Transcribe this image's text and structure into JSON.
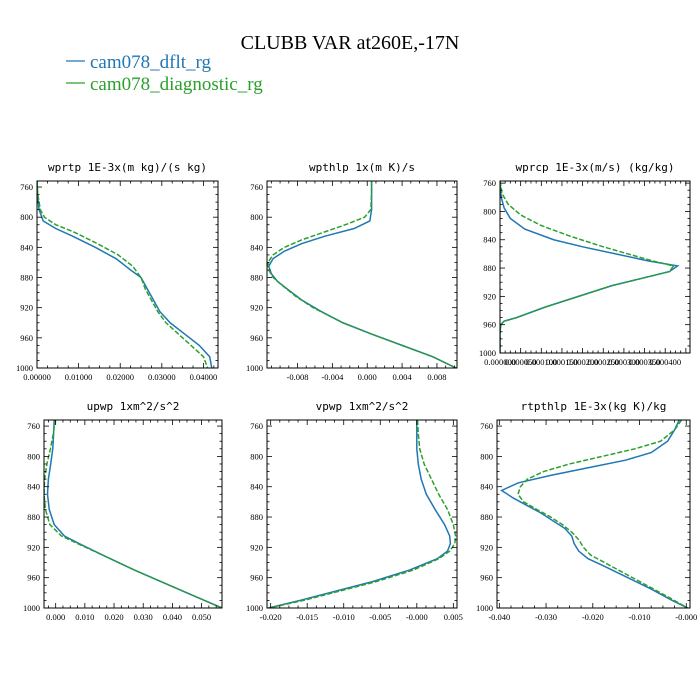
{
  "title": "CLUBB VAR at260E,-17N",
  "legend": [
    {
      "name": "cam078_dflt_rg",
      "color": "#1f77b4",
      "style": "solid"
    },
    {
      "name": "cam078_diagnostic_rg",
      "color": "#2ca02c",
      "style": "dashed"
    }
  ],
  "chart_data": [
    {
      "type": "line",
      "title": "wprtp  1E-3x(m kg)/(s kg)",
      "xlim": [
        0,
        0.0435
      ],
      "ylim": [
        1000,
        752
      ],
      "xticks": [
        0,
        0.01,
        0.02,
        0.03,
        0.04
      ],
      "xtick_labels": [
        "0.00000",
        "0.01000",
        "0.02000",
        "0.03000",
        "0.04000"
      ],
      "yticks": [
        760,
        800,
        840,
        880,
        920,
        960,
        1000
      ],
      "grid": false,
      "legend": "none",
      "series": [
        {
          "name": "cam078_dflt_rg",
          "y": [
            752,
            770,
            790,
            805,
            815,
            825,
            840,
            855,
            870,
            880,
            895,
            910,
            925,
            940,
            955,
            970,
            985,
            1000
          ],
          "values": [
            0.0,
            0.0001,
            0.0005,
            0.0015,
            0.0045,
            0.0085,
            0.014,
            0.019,
            0.0225,
            0.025,
            0.0265,
            0.028,
            0.0295,
            0.032,
            0.0355,
            0.039,
            0.0415,
            0.042
          ]
        },
        {
          "name": "cam078_diagnostic_rg",
          "y": [
            752,
            770,
            790,
            800,
            810,
            820,
            835,
            850,
            865,
            880,
            895,
            910,
            925,
            940,
            955,
            970,
            985,
            1000
          ],
          "values": [
            0.0,
            0.0002,
            0.0008,
            0.0018,
            0.0045,
            0.009,
            0.0145,
            0.0195,
            0.023,
            0.025,
            0.026,
            0.0275,
            0.029,
            0.031,
            0.034,
            0.037,
            0.04,
            0.041
          ]
        }
      ]
    },
    {
      "type": "line",
      "title": "wpthlp  1x(m K)/s",
      "xlim": [
        -0.0115,
        0.0103
      ],
      "ylim": [
        1000,
        752
      ],
      "xticks": [
        -0.008,
        -0.004,
        0,
        0.004,
        0.008
      ],
      "xtick_labels": [
        "-0.008",
        "-0.004",
        "0.000",
        "0.004",
        "0.008"
      ],
      "yticks": [
        760,
        800,
        840,
        880,
        920,
        960,
        1000
      ],
      "grid": false,
      "legend": "none",
      "series": [
        {
          "name": "cam078_dflt_rg",
          "y": [
            752,
            770,
            790,
            805,
            815,
            825,
            835,
            845,
            855,
            865,
            875,
            885,
            895,
            910,
            925,
            940,
            955,
            970,
            985,
            1000
          ],
          "values": [
            0.0005,
            0.0005,
            0.0005,
            0.0003,
            -0.0015,
            -0.0048,
            -0.0075,
            -0.0095,
            -0.0108,
            -0.0113,
            -0.011,
            -0.0103,
            -0.0092,
            -0.0075,
            -0.0053,
            -0.0028,
            0.0005,
            0.004,
            0.0075,
            0.0102
          ]
        },
        {
          "name": "cam078_diagnostic_rg",
          "y": [
            752,
            770,
            790,
            800,
            810,
            820,
            830,
            840,
            850,
            860,
            870,
            880,
            890,
            905,
            920,
            940,
            955,
            970,
            985,
            1000
          ],
          "values": [
            0.0005,
            0.0005,
            0.0004,
            -0.0003,
            -0.0025,
            -0.005,
            -0.0075,
            -0.0095,
            -0.0108,
            -0.0114,
            -0.0113,
            -0.0108,
            -0.0098,
            -0.0082,
            -0.0062,
            -0.0028,
            0.0005,
            0.004,
            0.0075,
            0.0102
          ]
        }
      ]
    },
    {
      "type": "line",
      "title": "wprcp  1E-3x(m/s) (kg/kg)",
      "xlim": [
        0,
        0.00046
      ],
      "ylim": [
        1000,
        757
      ],
      "xticks": [
        0,
        5e-05,
        0.0001,
        0.00015,
        0.0002,
        0.00025,
        0.0003,
        0.00035,
        0.0004
      ],
      "xtick_labels": [
        "0.000000",
        "0.000050",
        "0.000100",
        "0.000150",
        "0.000200",
        "0.000250",
        "0.000300",
        "0.000350",
        "0.000400"
      ],
      "yticks": [
        760,
        800,
        840,
        880,
        920,
        960,
        1000
      ],
      "grid": false,
      "legend": "none",
      "series": [
        {
          "name": "cam078_dflt_rg",
          "y": [
            757,
            780,
            795,
            810,
            825,
            840,
            850,
            860,
            870,
            877,
            885,
            895,
            905,
            920,
            935,
            950,
            955,
            960,
            970,
            985,
            1000
          ],
          "values": [
            0,
            3e-06,
            1e-05,
            2.5e-05,
            6e-05,
            0.00013,
            0.0002,
            0.00028,
            0.00036,
            0.00043,
            0.00041,
            0.00034,
            0.00027,
            0.00019,
            0.00011,
            4e-05,
            1e-05,
            2e-06,
            0,
            0,
            0
          ]
        },
        {
          "name": "cam078_diagnostic_rg",
          "y": [
            757,
            775,
            790,
            805,
            820,
            835,
            850,
            860,
            870,
            877,
            885,
            895,
            905,
            920,
            935,
            950,
            955,
            960,
            970,
            985,
            1000
          ],
          "values": [
            0,
            5e-06,
            2e-05,
            5e-05,
            0.0001,
            0.00017,
            0.00025,
            0.00031,
            0.00037,
            0.00042,
            0.00041,
            0.00034,
            0.00027,
            0.00019,
            0.00011,
            4e-05,
            1e-05,
            2e-06,
            0,
            0,
            0
          ]
        }
      ]
    },
    {
      "type": "line",
      "title": "upwp  1xm^2/s^2",
      "xlim": [
        -0.004,
        0.057
      ],
      "ylim": [
        1000,
        752
      ],
      "xticks": [
        0,
        0.01,
        0.02,
        0.03,
        0.04,
        0.05
      ],
      "xtick_labels": [
        "0.000",
        "0.010",
        "0.020",
        "0.030",
        "0.040",
        "0.050"
      ],
      "yticks": [
        760,
        800,
        840,
        880,
        920,
        960,
        1000
      ],
      "grid": false,
      "legend": "none",
      "series": [
        {
          "name": "cam078_dflt_rg",
          "y": [
            752,
            770,
            790,
            810,
            830,
            850,
            870,
            890,
            905,
            915,
            930,
            950,
            970,
            985,
            1000
          ],
          "values": [
            -0.0005,
            -0.0007,
            -0.001,
            -0.0017,
            -0.0025,
            -0.0028,
            -0.0022,
            -0.0005,
            0.003,
            0.008,
            0.016,
            0.027,
            0.039,
            0.048,
            0.057
          ]
        },
        {
          "name": "cam078_diagnostic_rg",
          "y": [
            752,
            770,
            790,
            810,
            830,
            850,
            870,
            890,
            905,
            915,
            930,
            950,
            970,
            985,
            1000
          ],
          "values": [
            -0.0002,
            -0.0008,
            -0.0018,
            -0.003,
            -0.0038,
            -0.004,
            -0.0035,
            -0.002,
            0.002,
            0.0075,
            0.016,
            0.027,
            0.039,
            0.048,
            0.057
          ]
        }
      ]
    },
    {
      "type": "line",
      "title": "vpwp  1xm^2/s^2",
      "xlim": [
        -0.0205,
        0.0055
      ],
      "ylim": [
        1000,
        752
      ],
      "xticks": [
        -0.02,
        -0.015,
        -0.01,
        -0.005,
        0,
        0.005
      ],
      "xtick_labels": [
        "-0.020",
        "-0.015",
        "-0.010",
        "-0.005",
        "-0.000",
        "0.005"
      ],
      "yticks": [
        760,
        800,
        840,
        880,
        920,
        960,
        1000
      ],
      "grid": false,
      "legend": "none",
      "series": [
        {
          "name": "cam078_dflt_rg",
          "y": [
            752,
            770,
            790,
            810,
            830,
            850,
            870,
            890,
            905,
            915,
            925,
            935,
            950,
            965,
            980,
            990,
            1000
          ],
          "values": [
            0.0,
            0.0,
            0.0,
            0.0002,
            0.0006,
            0.0013,
            0.0025,
            0.0038,
            0.0045,
            0.0046,
            0.0042,
            0.0028,
            -0.001,
            -0.006,
            -0.012,
            -0.016,
            -0.0203
          ]
        },
        {
          "name": "cam078_diagnostic_rg",
          "y": [
            752,
            770,
            790,
            810,
            830,
            850,
            870,
            890,
            905,
            915,
            925,
            935,
            950,
            965,
            980,
            990,
            1000
          ],
          "values": [
            0.0001,
            0.0002,
            0.0004,
            0.001,
            0.002,
            0.003,
            0.0042,
            0.005,
            0.0053,
            0.0052,
            0.0045,
            0.003,
            -0.0005,
            -0.0055,
            -0.0115,
            -0.0155,
            -0.0203
          ]
        }
      ]
    },
    {
      "type": "line",
      "title": "rtpthlp  1E-3x(kg K)/kg",
      "xlim": [
        -0.0405,
        0.0008
      ],
      "ylim": [
        1000,
        752
      ],
      "xticks": [
        -0.04,
        -0.03,
        -0.02,
        -0.01,
        0
      ],
      "xtick_labels": [
        "-0.040",
        "-0.030",
        "-0.020",
        "-0.010",
        "-0.000"
      ],
      "yticks": [
        760,
        800,
        840,
        880,
        920,
        960,
        1000
      ],
      "grid": false,
      "legend": "none",
      "series": [
        {
          "name": "cam078_dflt_rg",
          "y": [
            752,
            765,
            780,
            795,
            805,
            815,
            825,
            835,
            845,
            855,
            865,
            875,
            885,
            895,
            905,
            915,
            925,
            935,
            945,
            960,
            975,
            990,
            1000
          ],
          "values": [
            -0.0015,
            -0.0025,
            -0.004,
            -0.0075,
            -0.013,
            -0.021,
            -0.029,
            -0.036,
            -0.0395,
            -0.037,
            -0.034,
            -0.031,
            -0.0285,
            -0.026,
            -0.0245,
            -0.024,
            -0.023,
            -0.021,
            -0.0175,
            -0.0125,
            -0.0075,
            -0.003,
            0.0003
          ]
        },
        {
          "name": "cam078_diagnostic_rg",
          "y": [
            752,
            765,
            780,
            790,
            800,
            810,
            820,
            830,
            840,
            850,
            860,
            870,
            880,
            890,
            900,
            910,
            920,
            930,
            940,
            955,
            970,
            985,
            1000
          ],
          "values": [
            -0.001,
            -0.0025,
            -0.0055,
            -0.011,
            -0.018,
            -0.025,
            -0.0305,
            -0.034,
            -0.0355,
            -0.036,
            -0.0348,
            -0.032,
            -0.029,
            -0.0265,
            -0.0245,
            -0.023,
            -0.022,
            -0.0205,
            -0.0175,
            -0.013,
            -0.0085,
            -0.004,
            0.0003
          ]
        }
      ]
    }
  ]
}
